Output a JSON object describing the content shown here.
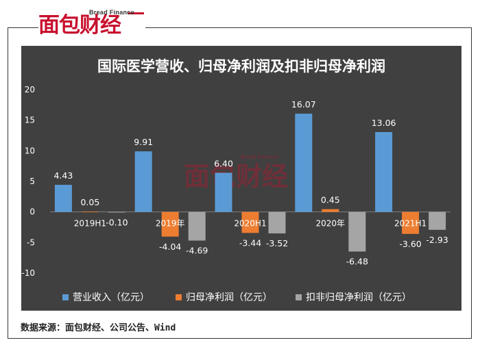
{
  "logo": {
    "text": "面包财经",
    "subtext": "Bread Finance"
  },
  "watermark": {
    "text": "面包财经",
    "subtext": "Bread Finance"
  },
  "source_note": "数据来源：面包财经、公司公告、Wind",
  "colors": {
    "panel": "#404040",
    "series": [
      "#5b9bd5",
      "#ed7d31",
      "#a5a5a5"
    ],
    "brand": "#c8102e"
  },
  "chart_data": {
    "type": "bar",
    "title": "国际医学营收、归母净利润及扣非归母净利润",
    "categories": [
      "2019H1",
      "2019年",
      "2020H1",
      "2020年",
      "2021H1"
    ],
    "series": [
      {
        "name": "营业收入（亿元）",
        "values": [
          4.43,
          9.91,
          6.4,
          16.07,
          13.06
        ],
        "labels": [
          "4.43",
          "9.91",
          "6.40",
          "16.07",
          "13.06"
        ]
      },
      {
        "name": "归母净利润（亿元）",
        "values": [
          0.05,
          -4.04,
          -3.44,
          0.45,
          -3.6
        ],
        "labels": [
          "0.05",
          "-4.04",
          "-3.44",
          "0.45",
          "-3.60"
        ]
      },
      {
        "name": "扣非归母净利润（亿元）",
        "values": [
          -0.1,
          -4.69,
          -3.52,
          -6.48,
          -2.93
        ],
        "labels": [
          "-0.10",
          "-4.69",
          "-3.52",
          "-6.48",
          "-2.93"
        ]
      }
    ],
    "ylim": [
      -10,
      20
    ],
    "yticks": [
      -10,
      -5,
      0,
      5,
      10,
      15,
      20
    ],
    "grid": false,
    "legend_position": "bottom"
  }
}
